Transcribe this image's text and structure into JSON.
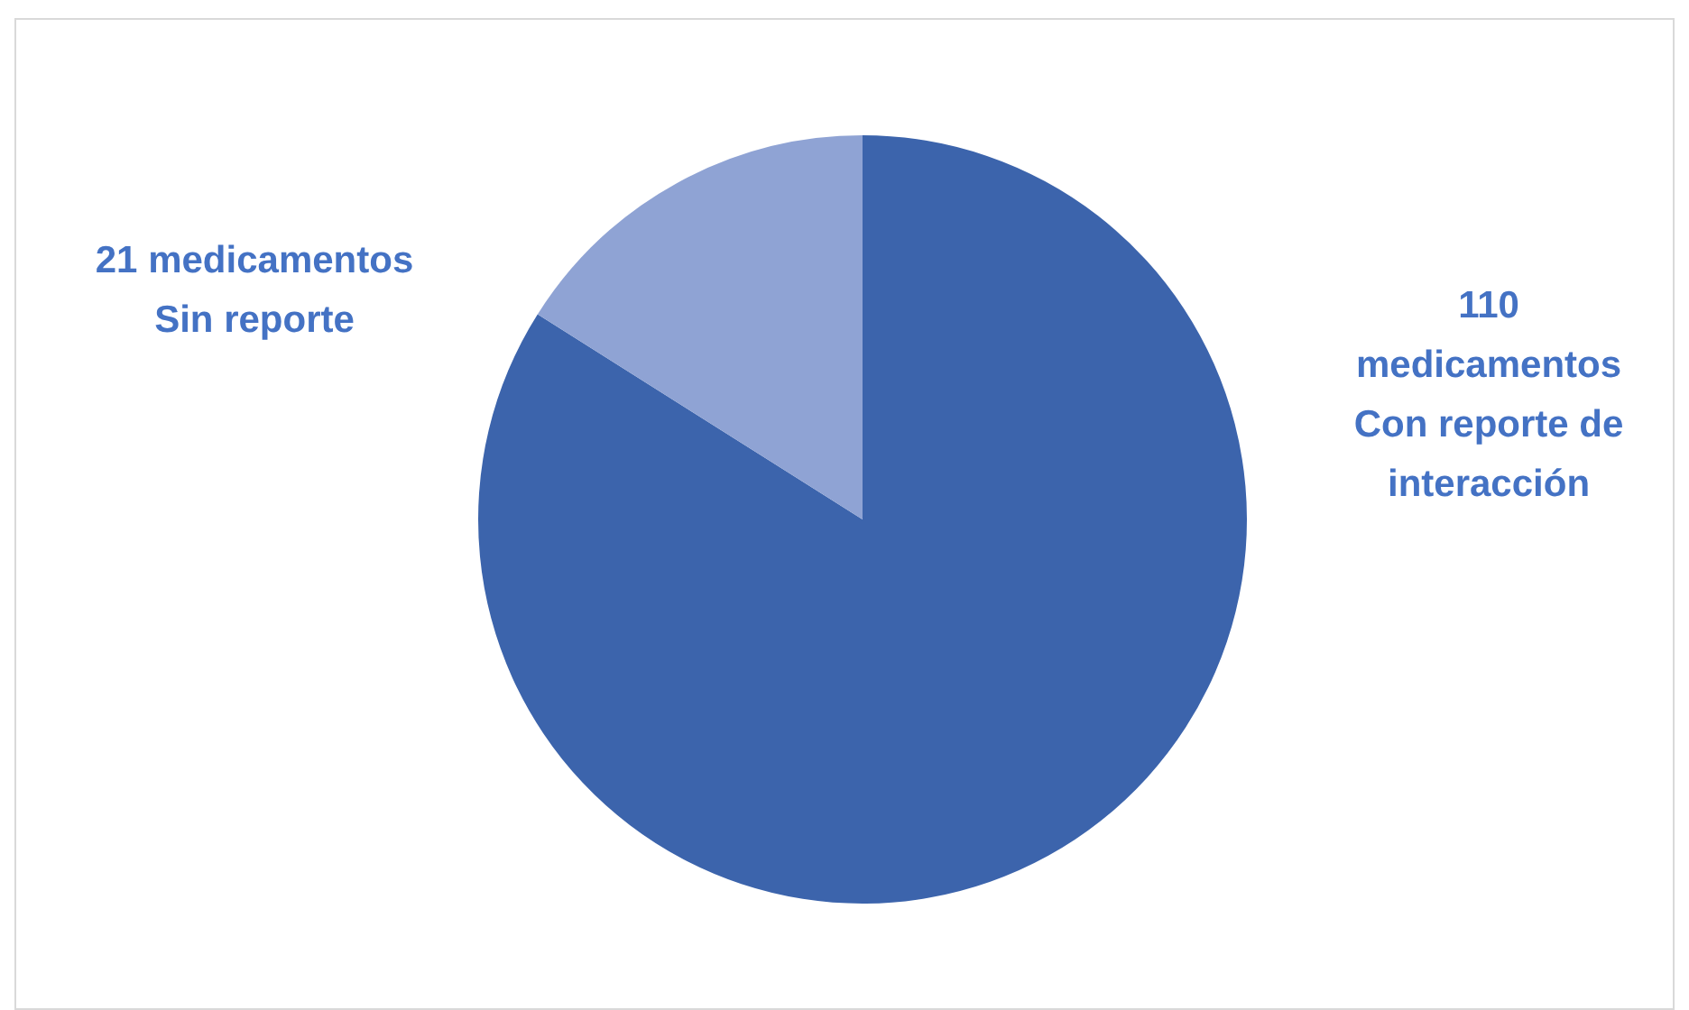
{
  "chart_data": {
    "type": "pie",
    "categories": [
      "Con reporte de interacción",
      "Sin reporte"
    ],
    "values": [
      110,
      21
    ],
    "value_labels": [
      "110 medicamentos",
      "21 medicamentos"
    ],
    "colors": [
      "#3c64ac",
      "#8fa3d4"
    ],
    "legend": false
  }
}
